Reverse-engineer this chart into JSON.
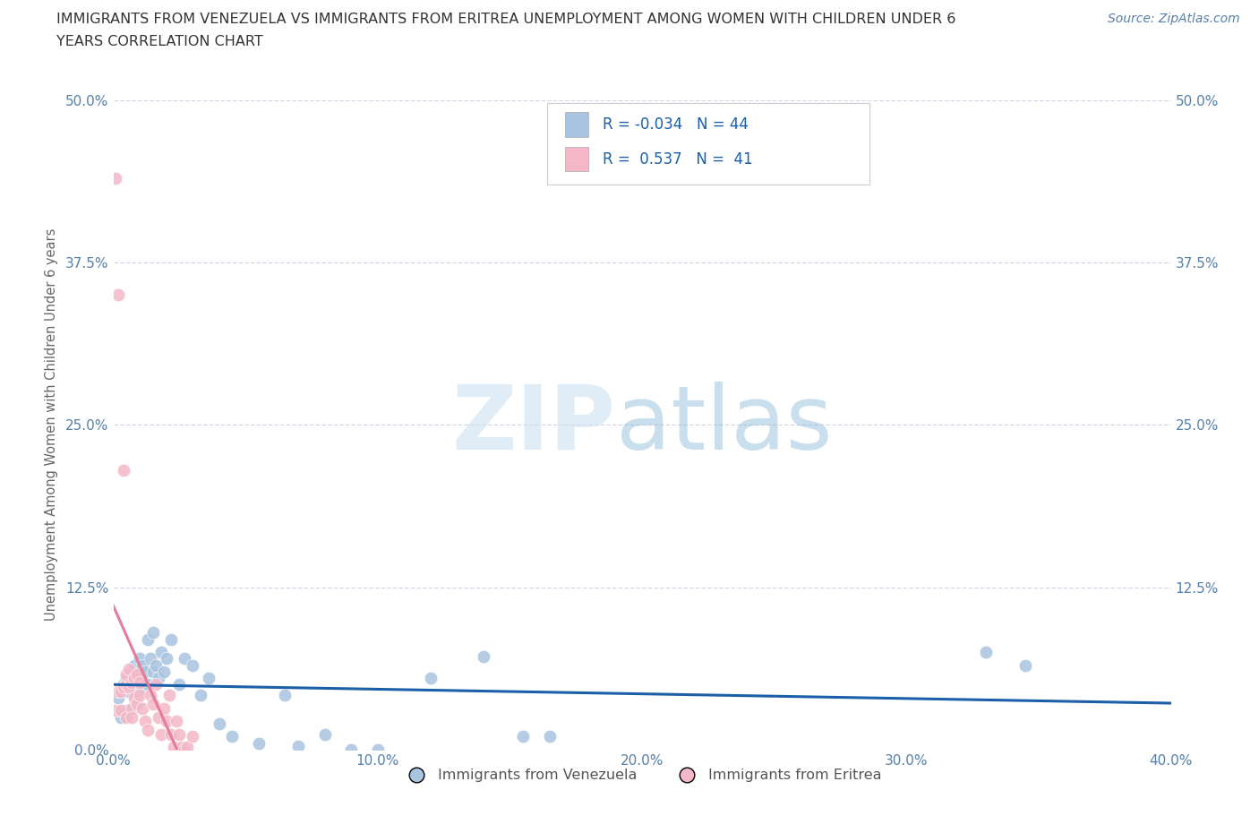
{
  "title_line1": "IMMIGRANTS FROM VENEZUELA VS IMMIGRANTS FROM ERITREA UNEMPLOYMENT AMONG WOMEN WITH CHILDREN UNDER 6",
  "title_line2": "YEARS CORRELATION CHART",
  "source": "Source: ZipAtlas.com",
  "ylabel": "Unemployment Among Women with Children Under 6 years",
  "xlim": [
    0.0,
    0.4
  ],
  "ylim": [
    0.0,
    0.5
  ],
  "xticks": [
    0.0,
    0.1,
    0.2,
    0.3,
    0.4
  ],
  "yticks": [
    0.0,
    0.125,
    0.25,
    0.375,
    0.5
  ],
  "venezuela_color": "#a8c4e0",
  "eritrea_color": "#f4b8c8",
  "venezuela_R": -0.034,
  "venezuela_N": 44,
  "eritrea_R": 0.537,
  "eritrea_N": 41,
  "trend_venezuela_color": "#1a5fa8",
  "trend_eritrea_color": "#e87a9a",
  "background_color": "#ffffff",
  "grid_color": "#d0d8e8",
  "axis_color": "#5580aa",
  "venezuela_x": [
    0.002,
    0.003,
    0.004,
    0.005,
    0.005,
    0.006,
    0.007,
    0.008,
    0.008,
    0.009,
    0.01,
    0.01,
    0.011,
    0.012,
    0.013,
    0.013,
    0.014,
    0.015,
    0.015,
    0.016,
    0.017,
    0.018,
    0.019,
    0.02,
    0.022,
    0.025,
    0.027,
    0.03,
    0.033,
    0.036,
    0.04,
    0.045,
    0.055,
    0.065,
    0.07,
    0.08,
    0.09,
    0.1,
    0.12,
    0.14,
    0.155,
    0.165,
    0.33,
    0.345
  ],
  "venezuela_y": [
    0.04,
    0.025,
    0.05,
    0.03,
    0.055,
    0.045,
    0.055,
    0.06,
    0.065,
    0.035,
    0.045,
    0.07,
    0.065,
    0.06,
    0.05,
    0.085,
    0.07,
    0.06,
    0.09,
    0.065,
    0.055,
    0.075,
    0.06,
    0.07,
    0.085,
    0.05,
    0.07,
    0.065,
    0.042,
    0.055,
    0.02,
    0.01,
    0.005,
    0.042,
    0.003,
    0.012,
    0.0,
    0.0,
    0.055,
    0.072,
    0.01,
    0.01,
    0.075,
    0.065
  ],
  "eritrea_x": [
    0.001,
    0.001,
    0.002,
    0.002,
    0.003,
    0.003,
    0.004,
    0.004,
    0.005,
    0.005,
    0.005,
    0.006,
    0.006,
    0.007,
    0.007,
    0.007,
    0.008,
    0.008,
    0.009,
    0.009,
    0.01,
    0.01,
    0.011,
    0.012,
    0.013,
    0.014,
    0.015,
    0.016,
    0.017,
    0.018,
    0.019,
    0.02,
    0.021,
    0.022,
    0.023,
    0.024,
    0.025,
    0.026,
    0.027,
    0.028,
    0.03
  ],
  "eritrea_y": [
    0.44,
    0.03,
    0.35,
    0.045,
    0.045,
    0.03,
    0.215,
    0.048,
    0.05,
    0.025,
    0.058,
    0.062,
    0.048,
    0.032,
    0.025,
    0.052,
    0.055,
    0.04,
    0.058,
    0.035,
    0.052,
    0.042,
    0.032,
    0.022,
    0.015,
    0.042,
    0.035,
    0.05,
    0.025,
    0.012,
    0.032,
    0.022,
    0.042,
    0.012,
    0.002,
    0.022,
    0.012,
    0.002,
    0.0,
    0.002,
    0.01
  ]
}
